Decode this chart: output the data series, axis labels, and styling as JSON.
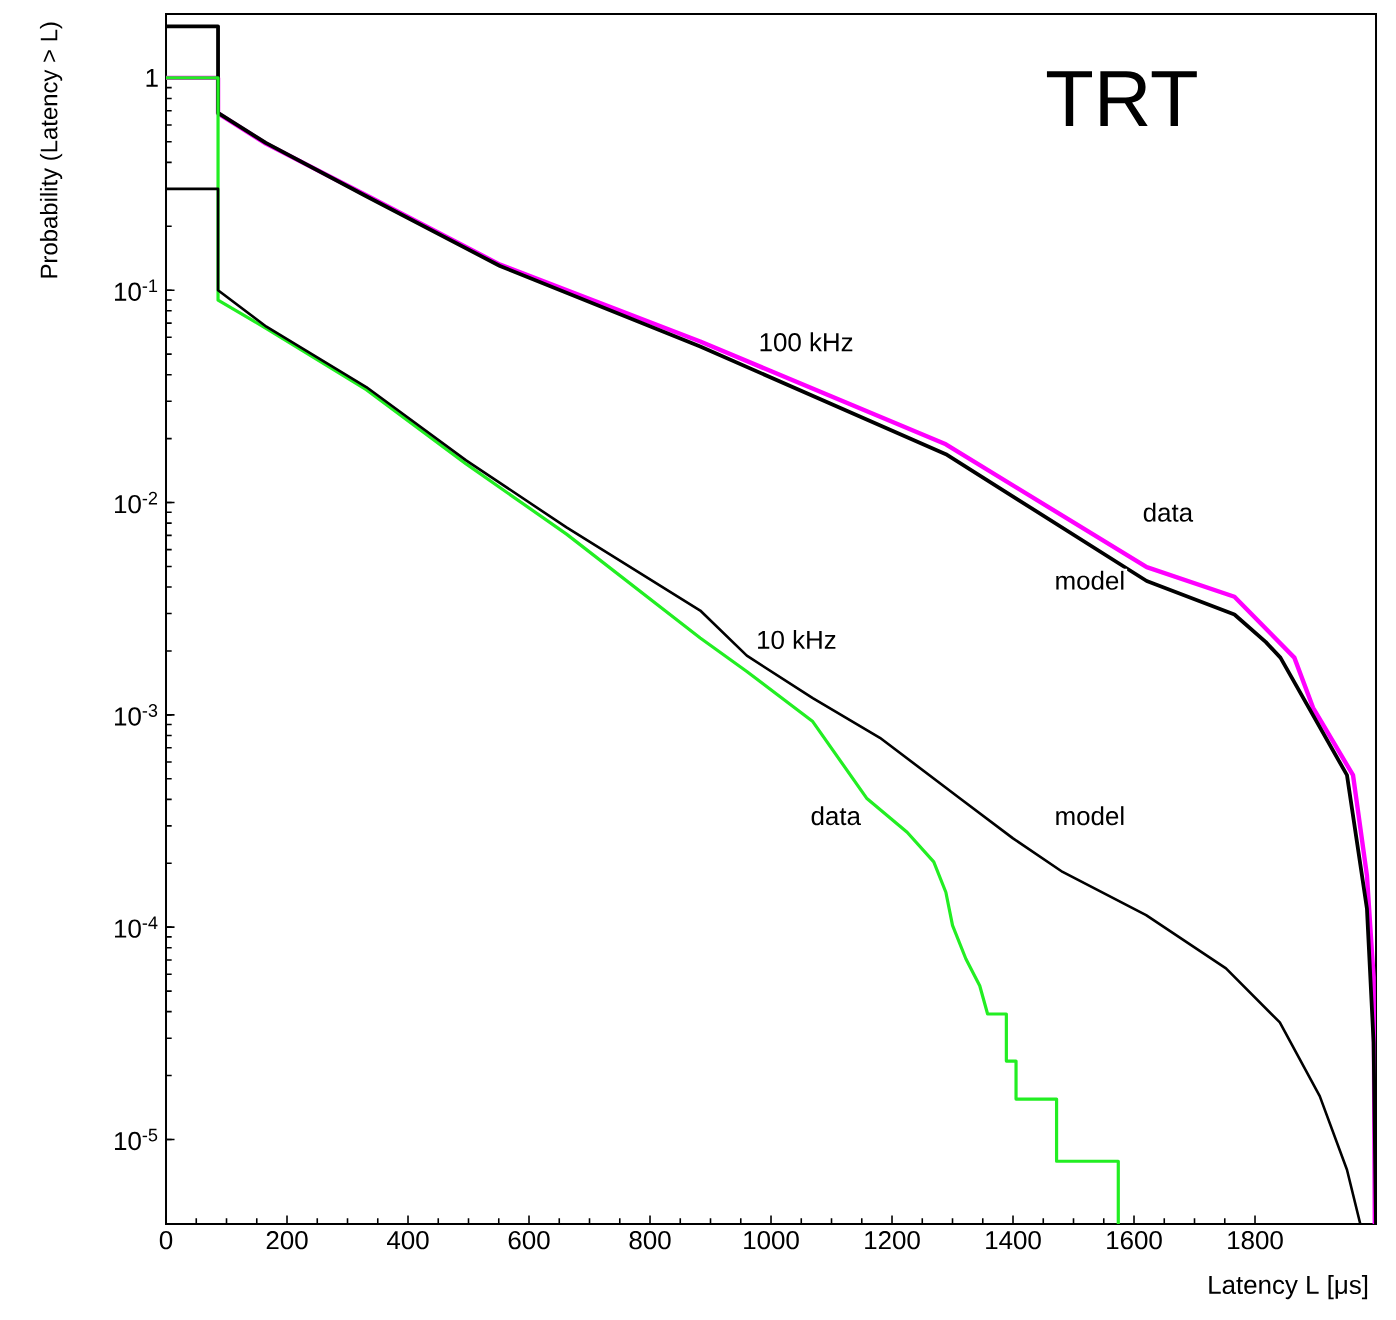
{
  "chart_data": {
    "type": "line",
    "title": "TRT",
    "xlabel": "Latency L [μs]",
    "ylabel": "Probability (Latency > L)",
    "log": "y",
    "marker": "none",
    "line_style": "solid",
    "xlim": [
      0,
      2000
    ],
    "ylim": [
      4e-06,
      2
    ],
    "xticks": [
      0,
      200,
      400,
      600,
      800,
      1000,
      1200,
      1400,
      1600,
      1800
    ],
    "yticks": [
      {
        "value": 1e-05,
        "label": "10$^{-5}$"
      },
      {
        "value": 0.0001,
        "label": "10$^{-4}$"
      },
      {
        "value": 0.001,
        "label": "10$^{-3}$"
      },
      {
        "value": 0.01,
        "label": "10$^{-2}$"
      },
      {
        "value": 0.1,
        "label": "10$^{-1}$"
      },
      {
        "value": 1,
        "label": "1"
      }
    ],
    "series": [
      {
        "color": "#ff00ff",
        "x": [
          0,
          86,
          86,
          165,
          331,
          552,
          883,
          1289,
          1621,
          1766,
          1865,
          1896,
          1962,
          1985,
          1996,
          1998
        ],
        "values": [
          1,
          1,
          0.68,
          0.49,
          0.28,
          0.132,
          0.0573,
          0.0188,
          0.00496,
          0.0036,
          0.00186,
          0.00108,
          0.00052,
          0.000175,
          5.8e-05,
          4e-06
        ]
      },
      {
        "color": "#000000",
        "x": [
          0,
          86,
          86,
          165,
          331,
          552,
          883,
          1289,
          1621,
          1766,
          1818,
          1842,
          1952,
          1985,
          1996,
          2000
        ],
        "values": [
          1.75,
          1.75,
          0.685,
          0.494,
          0.277,
          0.13,
          0.0543,
          0.0169,
          0.00427,
          0.00297,
          0.0022,
          0.00186,
          0.00052,
          0.000122,
          2.86e-05,
          4e-06
        ]
      },
      {
        "color": "#22ee22",
        "x": [
          0,
          86,
          86,
          166,
          331,
          496,
          662,
          883,
          960,
          1069,
          1158,
          1225,
          1269,
          1289,
          1300,
          1322,
          1345,
          1358,
          1389,
          1389,
          1400,
          1405,
          1405,
          1472,
          1472,
          1574,
          1574
        ],
        "values": [
          1,
          1,
          0.0897,
          0.066,
          0.034,
          0.0152,
          0.0071,
          0.0023,
          0.0016,
          0.00093,
          0.000405,
          0.00028,
          0.000203,
          0.000146,
          0.000102,
          7.1e-05,
          5.3e-05,
          3.9e-05,
          3.9e-05,
          2.34e-05,
          2.34e-05,
          2.34e-05,
          1.55e-05,
          1.55e-05,
          7.9e-06,
          7.9e-06,
          4e-06
        ]
      },
      {
        "color": "#000000",
        "x": [
          0,
          86,
          86,
          166,
          331,
          496,
          662,
          883,
          960,
          1069,
          1180,
          1312,
          1400,
          1482,
          1620,
          1752,
          1841,
          1907,
          1952,
          1974
        ],
        "values": [
          0.3,
          0.3,
          0.1,
          0.0673,
          0.035,
          0.0158,
          0.00764,
          0.0031,
          0.0019,
          0.0012,
          0.00078,
          0.000405,
          0.000262,
          0.000182,
          0.000114,
          6.4e-05,
          3.56e-05,
          1.6e-05,
          7.2e-06,
          4e-06
        ]
      }
    ],
    "annotations": [
      "100 kHz",
      {
        "text": "data",
        "x": 1656,
        "y": 0.009
      },
      {
        "text": "model",
        "x": 1527,
        "y": 0.0043
      },
      "10 kHz",
      {
        "text": "data",
        "x": 1107,
        "y": 0.000335
      },
      {
        "text": "model",
        "x": 1527,
        "y": 0.000335
      }
    ]
  }
}
